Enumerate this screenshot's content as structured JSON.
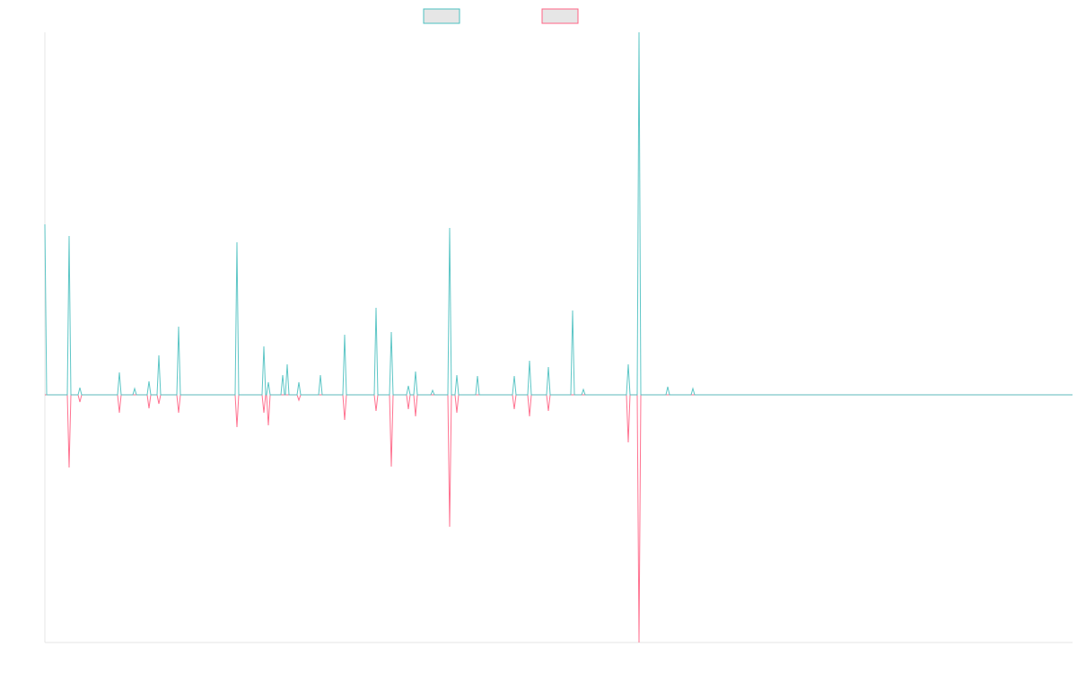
{
  "chart_data": {
    "type": "line",
    "x": [
      0,
      2,
      25,
      27,
      29,
      37,
      39,
      41,
      81,
      83,
      85,
      98,
      100,
      102,
      114,
      116,
      118,
      125,
      127,
      129,
      147,
      149,
      151,
      212,
      214,
      216,
      242,
      244,
      246,
      247,
      249,
      251,
      263,
      265,
      267,
      268,
      270,
      272,
      281,
      283,
      285,
      305,
      307,
      309,
      332,
      334,
      336,
      367,
      369,
      371,
      384,
      386,
      388,
      403,
      405,
      407,
      411,
      413,
      415,
      430,
      432,
      434,
      449,
      451,
      453,
      457,
      459,
      461,
      480,
      482,
      484,
      521,
      523,
      525,
      538,
      540,
      542,
      559,
      561,
      563,
      586,
      588,
      590,
      598,
      600,
      602,
      648,
      650,
      652,
      660,
      662,
      664,
      692,
      694,
      696,
      720,
      722,
      724,
      1145
    ],
    "series": [
      {
        "color": "#ff6384",
        "values": [
          0,
          0,
          0,
          -81,
          0,
          0,
          -8,
          0,
          0,
          -20,
          0,
          0,
          0,
          0,
          0,
          -15,
          0,
          0,
          -10,
          0,
          0,
          -20,
          0,
          0,
          -36,
          0,
          0,
          -20,
          0,
          0,
          -34,
          0,
          0,
          0,
          0,
          0,
          0,
          0,
          0,
          -6,
          0,
          0,
          0,
          0,
          0,
          -28,
          0,
          0,
          -18,
          0,
          0,
          -80,
          0,
          0,
          -16,
          0,
          0,
          -24,
          0,
          0,
          0,
          0,
          0,
          -147,
          0,
          0,
          -20,
          0,
          0,
          0,
          0,
          0,
          -16,
          0,
          0,
          -24,
          0,
          0,
          -18,
          0,
          0,
          0,
          0,
          0,
          0,
          0,
          0,
          -53,
          0,
          0,
          -276,
          0,
          0,
          0,
          0,
          0,
          0,
          0,
          0
        ]
      },
      {
        "color": "#4bc0c0",
        "values": [
          190,
          0,
          0,
          177,
          0,
          0,
          8,
          0,
          0,
          25,
          0,
          0,
          7,
          0,
          0,
          15,
          0,
          0,
          44,
          0,
          0,
          76,
          0,
          0,
          170,
          0,
          0,
          54,
          0,
          0,
          14,
          0,
          0,
          22,
          0,
          0,
          34,
          0,
          0,
          14,
          0,
          0,
          22,
          0,
          0,
          67,
          0,
          0,
          97,
          0,
          0,
          70,
          0,
          0,
          10,
          0,
          0,
          26,
          0,
          0,
          5,
          0,
          0,
          186,
          0,
          0,
          22,
          0,
          0,
          21,
          0,
          0,
          21,
          0,
          0,
          38,
          0,
          0,
          31,
          0,
          0,
          94,
          0,
          0,
          6,
          0,
          0,
          34,
          0,
          0,
          404,
          0,
          0,
          9,
          0,
          0,
          7,
          0,
          0
        ]
      }
    ],
    "xlim": [
      0,
      1145
    ],
    "ylim": [
      -276,
      404
    ],
    "legend": "top"
  }
}
